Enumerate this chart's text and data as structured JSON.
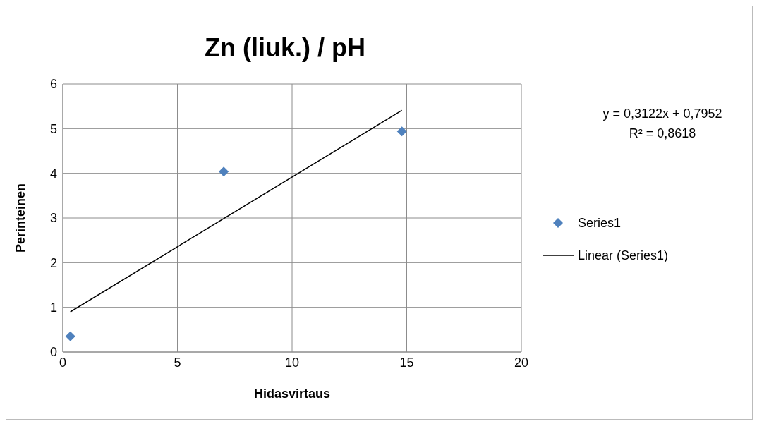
{
  "chart_data": {
    "type": "scatter",
    "title": "Zn (liuk.) / pH",
    "xlabel": "Hidasvirtaus",
    "ylabel": "Perinteinen",
    "x": [
      0.33,
      7.02,
      14.79
    ],
    "series": [
      {
        "name": "Series1",
        "color": "#4f81bd",
        "marker": "diamond",
        "values": [
          0.35,
          4.04,
          4.94
        ]
      },
      {
        "name": "Linear (Series1)",
        "type": "line",
        "color": "#000000",
        "marker": "none",
        "x": [
          0.33,
          14.79
        ],
        "values": [
          0.9,
          5.41
        ]
      }
    ],
    "xlim": [
      0,
      20
    ],
    "xticks": [
      0,
      5,
      10,
      15,
      20
    ],
    "ylim": [
      0,
      6
    ],
    "yticks": [
      0,
      1,
      2,
      3,
      4,
      5,
      6
    ],
    "grid": true,
    "legend": "right",
    "line_style": "solid",
    "annotations": [
      "y = 0,3122x + 0,7952",
      "R² = 0,8618"
    ]
  }
}
